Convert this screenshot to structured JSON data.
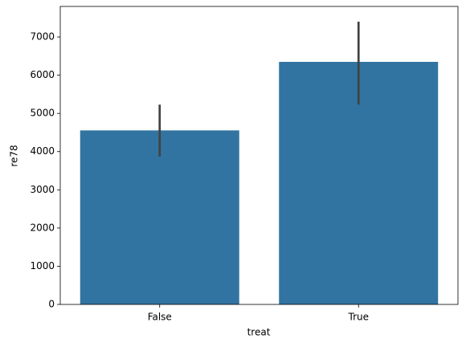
{
  "chart_data": {
    "type": "bar",
    "categories": [
      "False",
      "True"
    ],
    "values": [
      4555,
      6349
    ],
    "ci": [
      [
        3870,
        5230
      ],
      [
        5230,
        7400
      ]
    ],
    "color": "#3274a1",
    "errorbar_color": "#424242",
    "xlabel": "treat",
    "ylabel": "re78",
    "ylim": [
      0,
      7800
    ],
    "yticks": [
      0,
      1000,
      2000,
      3000,
      4000,
      5000,
      6000,
      7000
    ],
    "grid": false
  }
}
